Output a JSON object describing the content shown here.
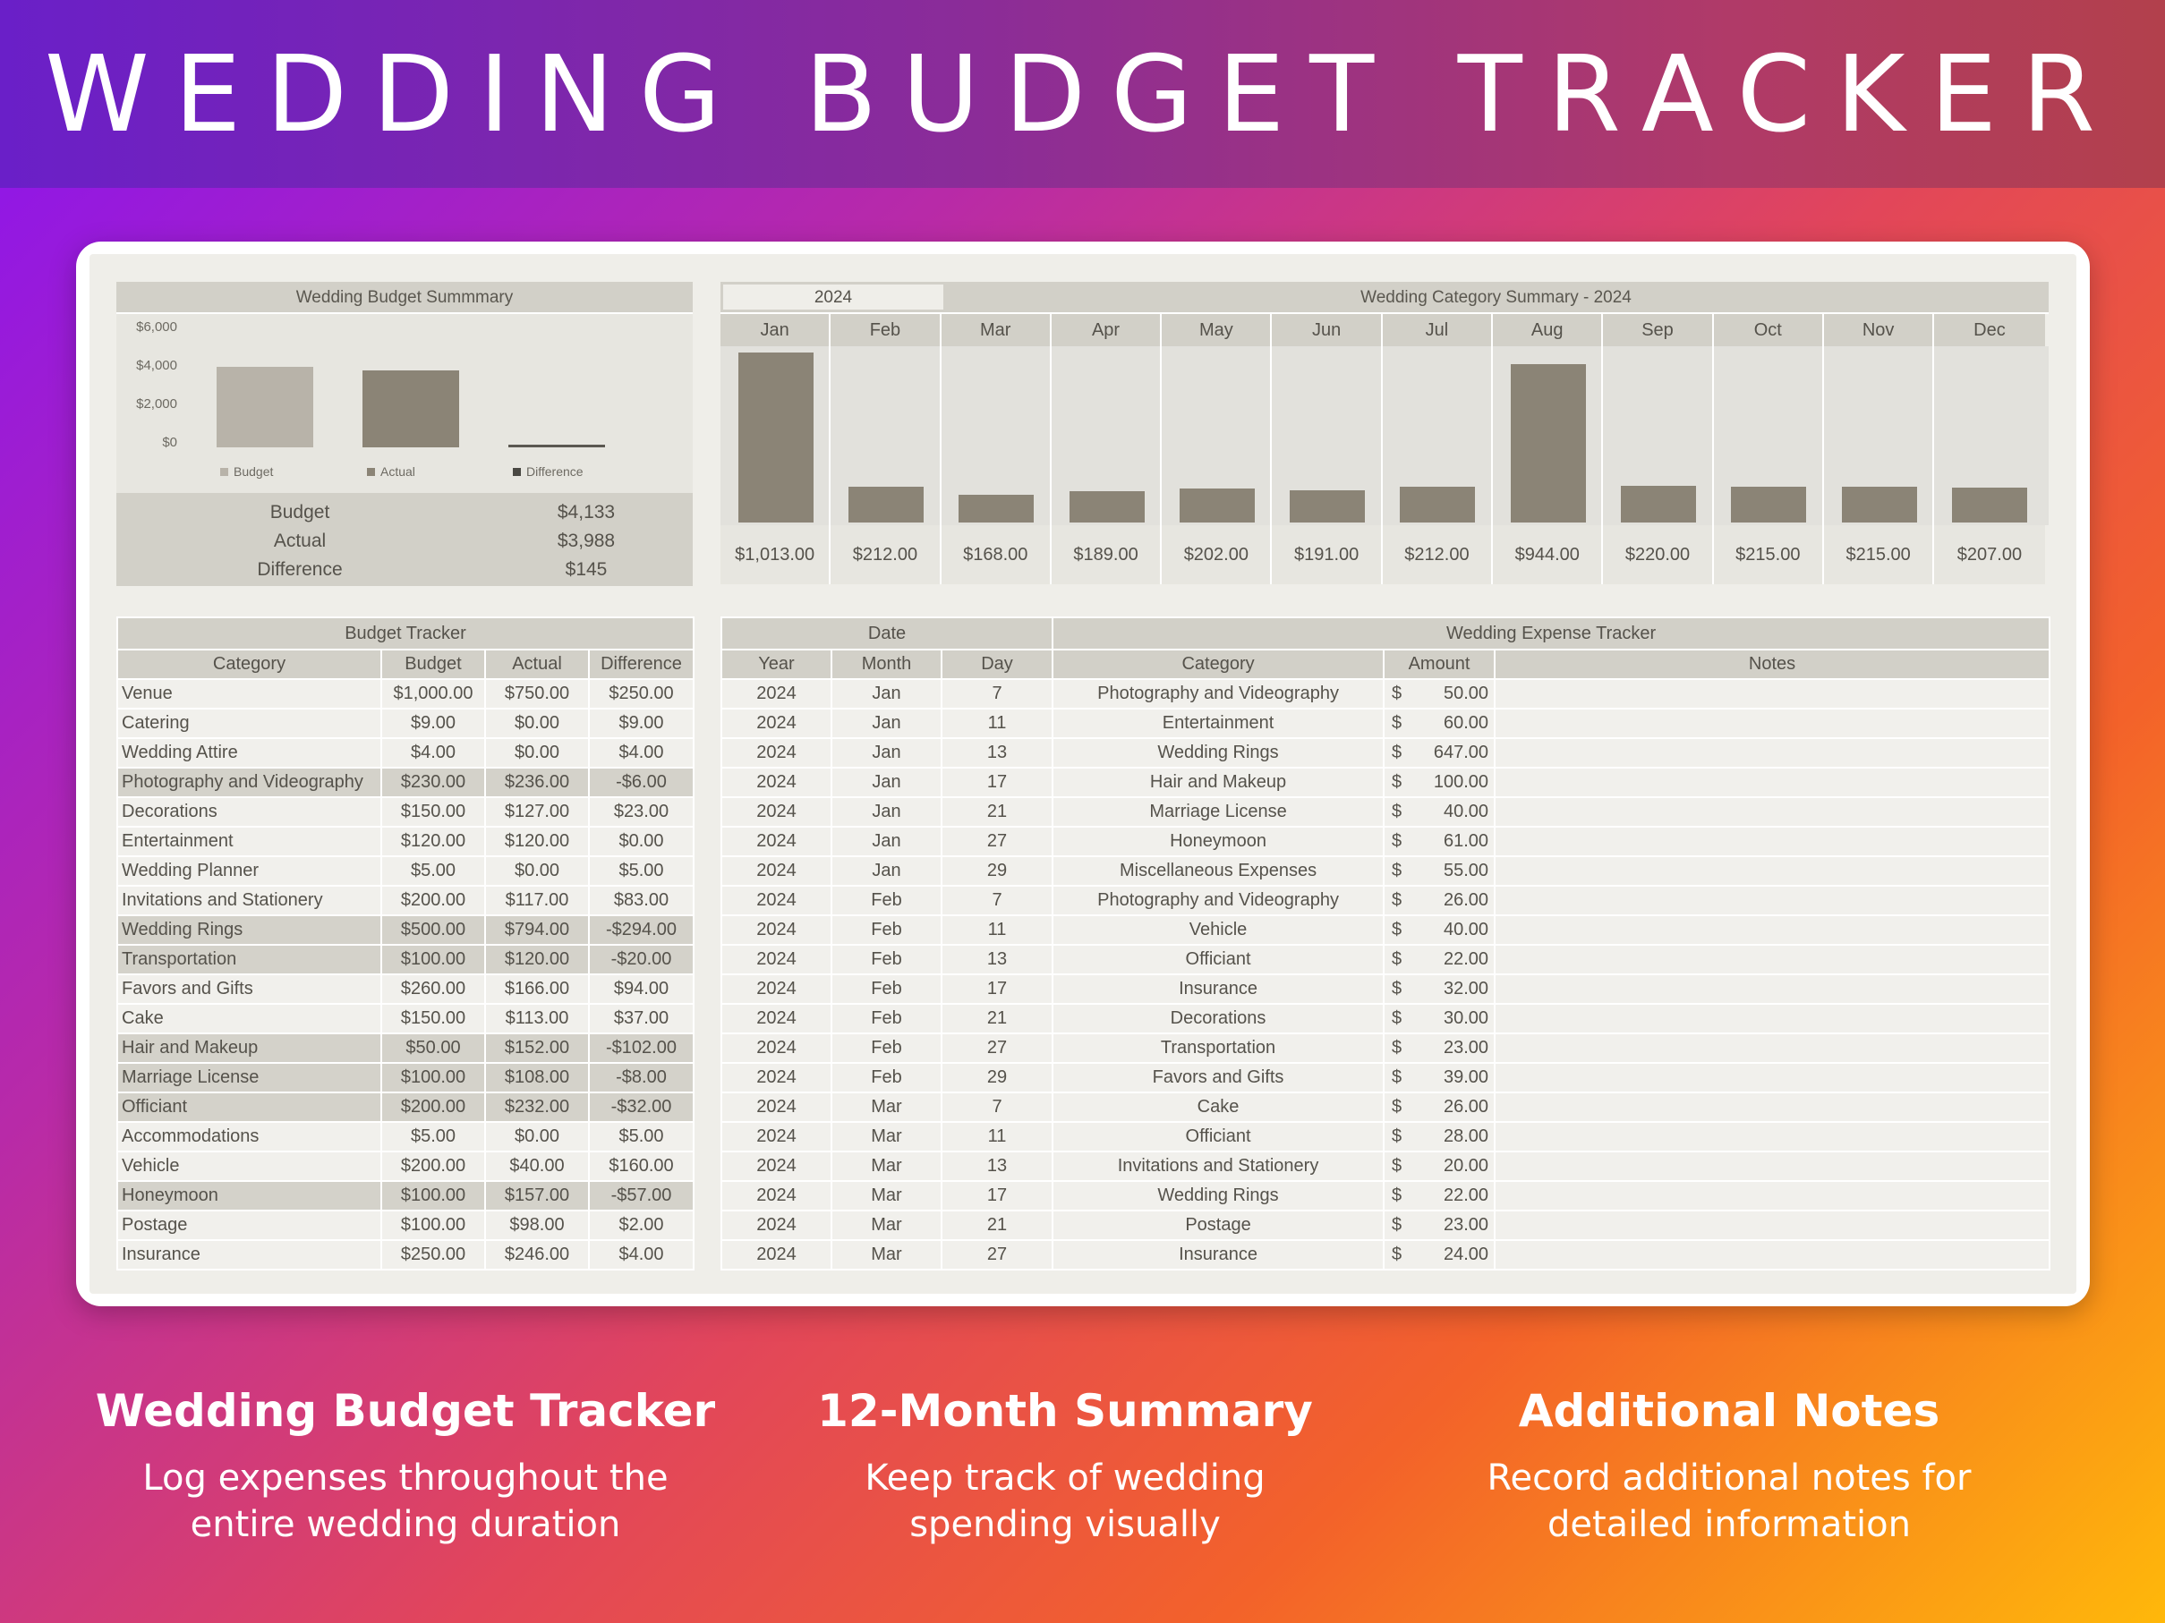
{
  "page_title": "WEDDING BUDGET TRACKER",
  "colors": {
    "budget": "#b8b3a9",
    "actual": "#8b8476",
    "difference": "#5b5851",
    "panel": "#d2d0c8"
  },
  "summary": {
    "title": "Wedding Budget Summmary",
    "rows": [
      {
        "label": "Budget",
        "value": "$4,133"
      },
      {
        "label": "Actual",
        "value": "$3,988"
      },
      {
        "label": "Difference",
        "value": "$145"
      }
    ]
  },
  "chart_data": [
    {
      "type": "bar",
      "title": "Wedding Budget Summmary",
      "categories": [
        "Budget",
        "Actual",
        "Difference"
      ],
      "values": [
        4133,
        3988,
        145
      ],
      "yticks": [
        "$6,000",
        "$4,000",
        "$2,000",
        "$0"
      ],
      "ylim": [
        0,
        6000
      ],
      "legend": [
        "Budget",
        "Actual",
        "Difference"
      ],
      "legend_position": "bottom"
    },
    {
      "type": "bar",
      "title": "Wedding Category Summary - 2024",
      "year": "2024",
      "categories": [
        "Jan",
        "Feb",
        "Mar",
        "Apr",
        "May",
        "Jun",
        "Jul",
        "Aug",
        "Sep",
        "Oct",
        "Nov",
        "Dec"
      ],
      "values": [
        1013,
        212,
        168,
        189,
        202,
        191,
        212,
        944,
        220,
        215,
        215,
        207
      ],
      "labels": [
        "$1,013.00",
        "$212.00",
        "$168.00",
        "$189.00",
        "$202.00",
        "$191.00",
        "$212.00",
        "$944.00",
        "$220.00",
        "$215.00",
        "$215.00",
        "$207.00"
      ]
    }
  ],
  "budget_tracker": {
    "title": "Budget Tracker",
    "columns": [
      "Category",
      "Budget",
      "Actual",
      "Difference"
    ],
    "rows": [
      {
        "category": "Venue",
        "budget": "$1,000.00",
        "actual": "$750.00",
        "difference": "$250.00",
        "over": false
      },
      {
        "category": "Catering",
        "budget": "$9.00",
        "actual": "$0.00",
        "difference": "$9.00",
        "over": false
      },
      {
        "category": "Wedding Attire",
        "budget": "$4.00",
        "actual": "$0.00",
        "difference": "$4.00",
        "over": false
      },
      {
        "category": "Photography and Videography",
        "budget": "$230.00",
        "actual": "$236.00",
        "difference": "-$6.00",
        "over": true
      },
      {
        "category": "Decorations",
        "budget": "$150.00",
        "actual": "$127.00",
        "difference": "$23.00",
        "over": false
      },
      {
        "category": "Entertainment",
        "budget": "$120.00",
        "actual": "$120.00",
        "difference": "$0.00",
        "over": false
      },
      {
        "category": "Wedding Planner",
        "budget": "$5.00",
        "actual": "$0.00",
        "difference": "$5.00",
        "over": false
      },
      {
        "category": "Invitations and Stationery",
        "budget": "$200.00",
        "actual": "$117.00",
        "difference": "$83.00",
        "over": false
      },
      {
        "category": "Wedding Rings",
        "budget": "$500.00",
        "actual": "$794.00",
        "difference": "-$294.00",
        "over": true
      },
      {
        "category": "Transportation",
        "budget": "$100.00",
        "actual": "$120.00",
        "difference": "-$20.00",
        "over": true
      },
      {
        "category": "Favors and Gifts",
        "budget": "$260.00",
        "actual": "$166.00",
        "difference": "$94.00",
        "over": false
      },
      {
        "category": "Cake",
        "budget": "$150.00",
        "actual": "$113.00",
        "difference": "$37.00",
        "over": false
      },
      {
        "category": "Hair and Makeup",
        "budget": "$50.00",
        "actual": "$152.00",
        "difference": "-$102.00",
        "over": true
      },
      {
        "category": "Marriage License",
        "budget": "$100.00",
        "actual": "$108.00",
        "difference": "-$8.00",
        "over": true
      },
      {
        "category": "Officiant",
        "budget": "$200.00",
        "actual": "$232.00",
        "difference": "-$32.00",
        "over": true
      },
      {
        "category": "Accommodations",
        "budget": "$5.00",
        "actual": "$0.00",
        "difference": "$5.00",
        "over": false
      },
      {
        "category": "Vehicle",
        "budget": "$200.00",
        "actual": "$40.00",
        "difference": "$160.00",
        "over": false
      },
      {
        "category": "Honeymoon",
        "budget": "$100.00",
        "actual": "$157.00",
        "difference": "-$57.00",
        "over": true
      },
      {
        "category": "Postage",
        "budget": "$100.00",
        "actual": "$98.00",
        "difference": "$2.00",
        "over": false
      },
      {
        "category": "Insurance",
        "budget": "$250.00",
        "actual": "$246.00",
        "difference": "$4.00",
        "over": false
      }
    ]
  },
  "expense_tracker": {
    "date_header": "Date",
    "title": "Wedding Expense Tracker",
    "columns": [
      "Year",
      "Month",
      "Day",
      "Category",
      "Amount",
      "Notes"
    ],
    "currency": "$",
    "rows": [
      {
        "year": "2024",
        "month": "Jan",
        "day": "7",
        "category": "Photography and Videography",
        "amount": "50.00",
        "notes": ""
      },
      {
        "year": "2024",
        "month": "Jan",
        "day": "11",
        "category": "Entertainment",
        "amount": "60.00",
        "notes": ""
      },
      {
        "year": "2024",
        "month": "Jan",
        "day": "13",
        "category": "Wedding Rings",
        "amount": "647.00",
        "notes": ""
      },
      {
        "year": "2024",
        "month": "Jan",
        "day": "17",
        "category": "Hair and Makeup",
        "amount": "100.00",
        "notes": ""
      },
      {
        "year": "2024",
        "month": "Jan",
        "day": "21",
        "category": "Marriage License",
        "amount": "40.00",
        "notes": ""
      },
      {
        "year": "2024",
        "month": "Jan",
        "day": "27",
        "category": "Honeymoon",
        "amount": "61.00",
        "notes": ""
      },
      {
        "year": "2024",
        "month": "Jan",
        "day": "29",
        "category": "Miscellaneous Expenses",
        "amount": "55.00",
        "notes": ""
      },
      {
        "year": "2024",
        "month": "Feb",
        "day": "7",
        "category": "Photography and Videography",
        "amount": "26.00",
        "notes": ""
      },
      {
        "year": "2024",
        "month": "Feb",
        "day": "11",
        "category": "Vehicle",
        "amount": "40.00",
        "notes": ""
      },
      {
        "year": "2024",
        "month": "Feb",
        "day": "13",
        "category": "Officiant",
        "amount": "22.00",
        "notes": ""
      },
      {
        "year": "2024",
        "month": "Feb",
        "day": "17",
        "category": "Insurance",
        "amount": "32.00",
        "notes": ""
      },
      {
        "year": "2024",
        "month": "Feb",
        "day": "21",
        "category": "Decorations",
        "amount": "30.00",
        "notes": ""
      },
      {
        "year": "2024",
        "month": "Feb",
        "day": "27",
        "category": "Transportation",
        "amount": "23.00",
        "notes": ""
      },
      {
        "year": "2024",
        "month": "Feb",
        "day": "29",
        "category": "Favors and Gifts",
        "amount": "39.00",
        "notes": ""
      },
      {
        "year": "2024",
        "month": "Mar",
        "day": "7",
        "category": "Cake",
        "amount": "26.00",
        "notes": ""
      },
      {
        "year": "2024",
        "month": "Mar",
        "day": "11",
        "category": "Officiant",
        "amount": "28.00",
        "notes": ""
      },
      {
        "year": "2024",
        "month": "Mar",
        "day": "13",
        "category": "Invitations and Stationery",
        "amount": "20.00",
        "notes": ""
      },
      {
        "year": "2024",
        "month": "Mar",
        "day": "17",
        "category": "Wedding Rings",
        "amount": "22.00",
        "notes": ""
      },
      {
        "year": "2024",
        "month": "Mar",
        "day": "21",
        "category": "Postage",
        "amount": "23.00",
        "notes": ""
      },
      {
        "year": "2024",
        "month": "Mar",
        "day": "27",
        "category": "Insurance",
        "amount": "24.00",
        "notes": ""
      }
    ]
  },
  "features": [
    {
      "title": "Wedding Budget Tracker",
      "line1": "Log expenses throughout the",
      "line2": "entire wedding duration"
    },
    {
      "title": "12-Month Summary",
      "line1": "Keep track of wedding",
      "line2": "spending visually"
    },
    {
      "title": "Additional Notes",
      "line1": "Record additional notes for",
      "line2": "detailed information"
    }
  ]
}
